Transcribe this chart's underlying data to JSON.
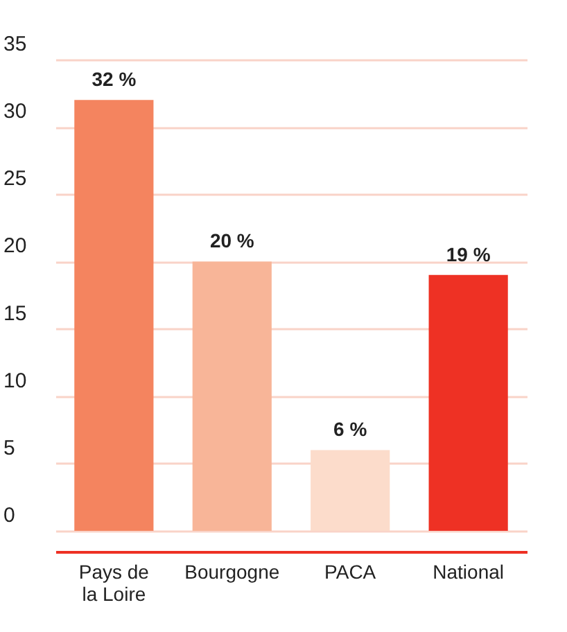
{
  "chart_data": {
    "type": "bar",
    "categories": [
      "Pays de la Loire",
      "Bourgogne",
      "PACA",
      "National"
    ],
    "values": [
      32,
      20,
      6,
      19
    ],
    "colors": [
      "#f4845f",
      "#f8b598",
      "#fcdccb",
      "#ee3124"
    ],
    "value_labels": [
      "32 %",
      "20 %",
      "6 %",
      "19 %"
    ],
    "ylim": [
      0,
      35
    ],
    "yticks": [
      0,
      5,
      10,
      15,
      20,
      25,
      30,
      35
    ],
    "grid": "y"
  }
}
